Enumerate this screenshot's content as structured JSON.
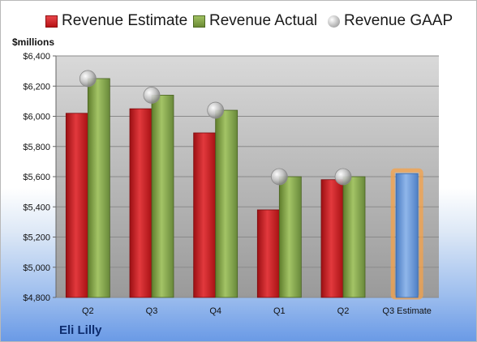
{
  "legend": {
    "estimate": "Revenue Estimate",
    "actual": "Revenue Actual",
    "gaap": "Revenue GAAP"
  },
  "unit_label": "$millions",
  "company": "Eli Lilly",
  "colors": {
    "estimate": "#c8191d",
    "actual": "#7f9f44",
    "gaap": "#b8b8b8",
    "projected": "#6c9ad8",
    "highlight": "#f6a248"
  },
  "chart_data": {
    "type": "bar",
    "categories": [
      "Q2",
      "Q3",
      "Q4",
      "Q1",
      "Q2",
      "Q3 Estimate"
    ],
    "series": [
      {
        "name": "Revenue Estimate",
        "values": [
          6020,
          6050,
          5890,
          5380,
          5580,
          null
        ]
      },
      {
        "name": "Revenue Actual",
        "values": [
          6250,
          6140,
          6040,
          5600,
          5600,
          null
        ]
      },
      {
        "name": "Revenue GAAP",
        "values": [
          6250,
          6140,
          6040,
          5600,
          5600,
          null
        ]
      },
      {
        "name": "Q3 Estimate",
        "values": [
          null,
          null,
          null,
          null,
          null,
          5620
        ]
      }
    ],
    "yticks": [
      "$4,800",
      "$5,000",
      "$5,200",
      "$5,400",
      "$5,600",
      "$5,800",
      "$6,000",
      "$6,200",
      "$6,400"
    ],
    "ylim": [
      4800,
      6400
    ],
    "ylabel": "$millions",
    "grid": true,
    "legend_position": "top"
  }
}
